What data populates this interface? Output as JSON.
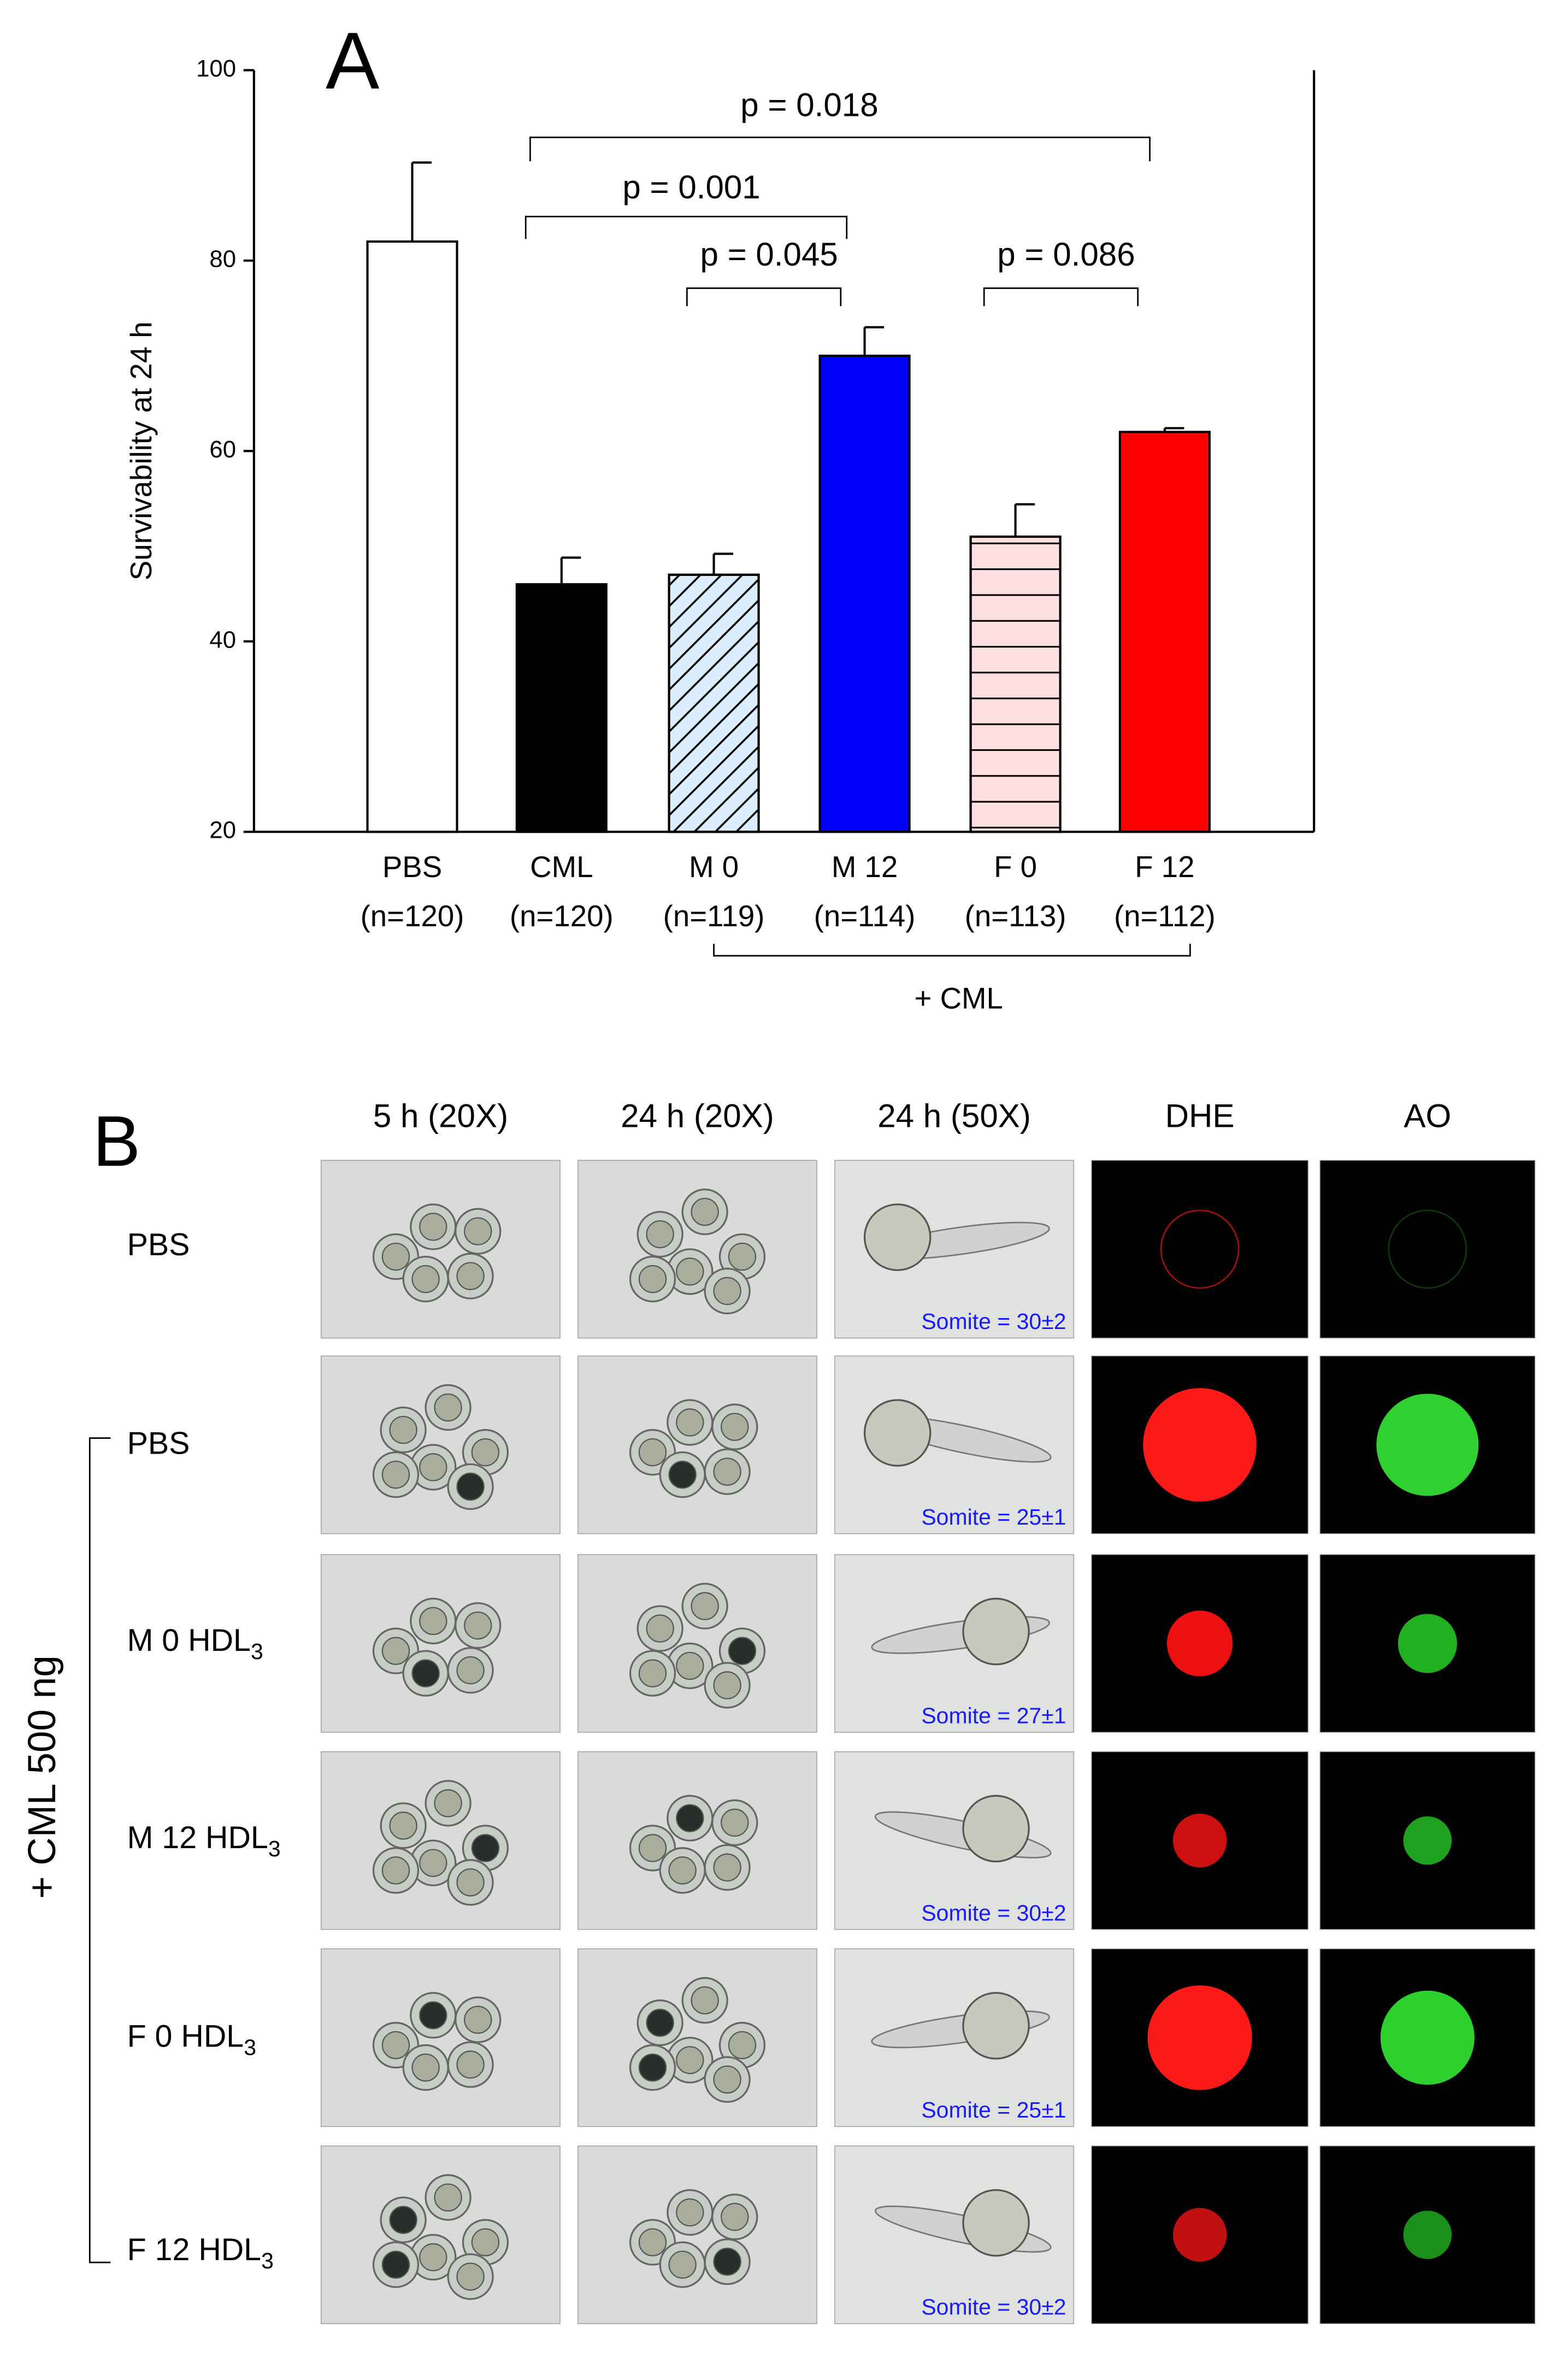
{
  "chart_data": {
    "type": "bar",
    "panel": "A",
    "y_label": "Survivability at 24 h",
    "categories": [
      "PBS",
      "CML",
      "M 0",
      "M 12",
      "F 0",
      "F 12"
    ],
    "n_labels": [
      "(n=120)",
      "(n=120)",
      "(n=119)",
      "(n=114)",
      "(n=113)",
      "(n=112)"
    ],
    "values": [
      82,
      46,
      47,
      70,
      51,
      62
    ],
    "errors": [
      8.3,
      2.8,
      2.2,
      3,
      3.4,
      0.4
    ],
    "colors": [
      "#ffffff",
      "#000000",
      "#dbeeff",
      "#0000ff",
      "#ffe0e0",
      "#ff0000"
    ],
    "hatch": [
      "none",
      "none",
      "diagonal",
      "none",
      "horizontal",
      "none"
    ],
    "ylim": [
      20,
      100
    ],
    "yticks": [
      20,
      40,
      60,
      80,
      100
    ],
    "comparisons": [
      "p = 0.018",
      "p = 0.001",
      "p = 0.045",
      "p = 0.086"
    ],
    "group_label": "+ CML"
  },
  "panel_b": {
    "panel": "B",
    "columns": [
      "5 h (20X)",
      "24 h (20X)",
      "24 h (50X)",
      "DHE",
      "AO"
    ],
    "side_label": "+ CML 500 ng",
    "rows": [
      {
        "label": {
          "text": "PBS"
        },
        "somite": "Somite = 30±2"
      },
      {
        "label": {
          "text": "PBS"
        },
        "somite": "Somite = 25±1"
      },
      {
        "label": {
          "text": "M 0 HDL",
          "sub": "3"
        },
        "somite": "Somite = 27±1"
      },
      {
        "label": {
          "text": "M 12 HDL",
          "sub": "3"
        },
        "somite": "Somite = 30±2"
      },
      {
        "label": {
          "text": "F 0 HDL",
          "sub": "3"
        },
        "somite": "Somite = 25±1"
      },
      {
        "label": {
          "text": "F 12 HDL",
          "sub": "3"
        },
        "somite": "Somite = 30±2"
      }
    ]
  }
}
